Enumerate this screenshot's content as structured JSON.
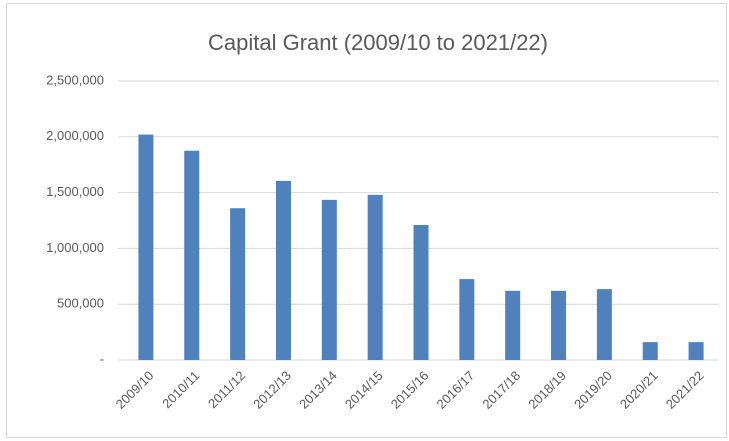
{
  "chart_data": {
    "type": "bar",
    "title": "Capital Grant (2009/10 to 2021/22)",
    "categories": [
      "2009/10",
      "2010/11",
      "2011/12",
      "2012/13",
      "2013/14",
      "2014/15",
      "2015/16",
      "2016/17",
      "2017/18",
      "2018/19",
      "2019/20",
      "2020/21",
      "2021/22"
    ],
    "values": [
      2020000,
      1875000,
      1360000,
      1605000,
      1435000,
      1480000,
      1210000,
      725000,
      620000,
      620000,
      635000,
      160000,
      160000
    ],
    "color": "#4f81bd",
    "ylim": [
      0,
      2500000
    ],
    "yticks": [
      {
        "value": 0,
        "label": "-"
      },
      {
        "value": 500000,
        "label": "500,000"
      },
      {
        "value": 1000000,
        "label": "1,000,000"
      },
      {
        "value": 1500000,
        "label": "1,500,000"
      },
      {
        "value": 2000000,
        "label": "2,000,000"
      },
      {
        "value": 2500000,
        "label": "2,500,000"
      }
    ],
    "grid": true
  }
}
